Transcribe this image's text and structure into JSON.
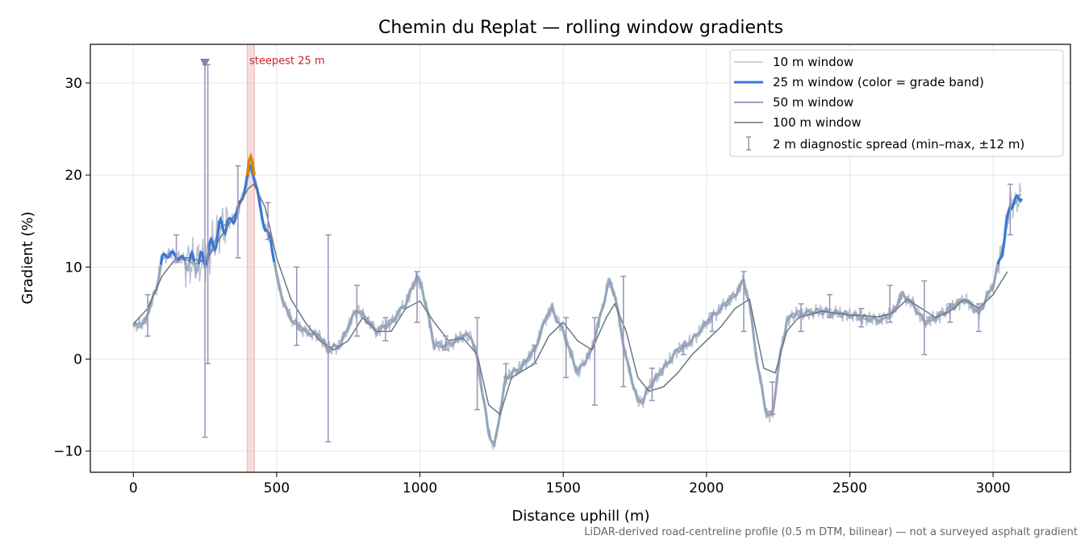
{
  "chart_data": {
    "type": "line",
    "title": "Chemin du Replat — rolling window gradients",
    "xlabel": "Distance uphill (m)",
    "ylabel": "Gradient (%)",
    "xlim": [
      -150,
      3270
    ],
    "ylim": [
      -12.3,
      34.2
    ],
    "xticks": [
      0,
      500,
      1000,
      1500,
      2000,
      2500,
      3000
    ],
    "yticks": [
      -10,
      0,
      10,
      20,
      30
    ],
    "grid": true,
    "legend_position": "top-right",
    "footnote": "LiDAR-derived road-centreline profile (0.5 m DTM, bilinear) — not a surveyed asphalt gradient",
    "annotation": {
      "text": "steepest 25 m",
      "x_range": [
        398,
        422
      ],
      "label_x": 405,
      "label_y": 32.5
    },
    "outlier_marker": {
      "x": 250,
      "y": 32.2
    },
    "colors": {
      "w10": "#b8c2d0",
      "w25": "#3a78d8",
      "w25_steep": "#d9870b",
      "w50": "#94a3b8",
      "w100": "#6b7686",
      "spread": "#9c8fb6",
      "highlight": "#f3c4c4"
    },
    "series": [
      {
        "name": "10 m window"
      },
      {
        "name": "25 m window (color = grade band)"
      },
      {
        "name": "50 m window"
      },
      {
        "name": "100 m window"
      },
      {
        "name": "2 m diagnostic spread (min–max, ±12 m)"
      }
    ],
    "profile": {
      "x": [
        0,
        40,
        60,
        80,
        100,
        130,
        160,
        200,
        230,
        250,
        280,
        300,
        330,
        350,
        380,
        400,
        410,
        420,
        440,
        460,
        480,
        500,
        530,
        560,
        600,
        650,
        680,
        720,
        780,
        850,
        900,
        950,
        990,
        1010,
        1050,
        1100,
        1150,
        1180,
        1200,
        1220,
        1240,
        1260,
        1300,
        1350,
        1400,
        1440,
        1460,
        1500,
        1550,
        1600,
        1640,
        1660,
        1680,
        1720,
        1760,
        1780,
        1800,
        1850,
        1900,
        1950,
        2000,
        2050,
        2100,
        2130,
        2150,
        2180,
        2210,
        2230,
        2260,
        2280,
        2300,
        2350,
        2400,
        2450,
        2500,
        2550,
        2600,
        2650,
        2680,
        2720,
        2760,
        2800,
        2850,
        2900,
        2950,
        3000,
        3020,
        3040,
        3060,
        3080,
        3100
      ],
      "y50": [
        3.5,
        4,
        6,
        7.5,
        11,
        11.5,
        11,
        10.5,
        10.5,
        10.8,
        12.5,
        14,
        15,
        15,
        17.5,
        20,
        21,
        20,
        17,
        14,
        13,
        9,
        5.5,
        4,
        3,
        2.5,
        1,
        1.5,
        5.5,
        3,
        4,
        6,
        9,
        7.5,
        1.5,
        1.5,
        2.5,
        2.5,
        0,
        -4,
        -8,
        -9.5,
        -2,
        -1,
        1,
        4.5,
        5.5,
        3,
        -1.5,
        1,
        6,
        8.5,
        7,
        0,
        -4.5,
        -4.5,
        -3,
        -1,
        1,
        2,
        4,
        5.5,
        7,
        8.5,
        6,
        -1,
        -6,
        -6,
        1,
        4,
        4.8,
        5,
        5.2,
        5,
        4.8,
        4.5,
        4.2,
        5,
        7,
        6,
        4,
        4.5,
        5.5,
        6.5,
        5,
        8,
        10.5,
        13,
        17,
        17,
        18
      ]
    },
    "profile_100": {
      "x": [
        0,
        50,
        100,
        150,
        200,
        250,
        300,
        350,
        400,
        420,
        460,
        500,
        550,
        600,
        650,
        700,
        750,
        800,
        850,
        900,
        950,
        1000,
        1050,
        1100,
        1150,
        1200,
        1240,
        1280,
        1320,
        1400,
        1450,
        1500,
        1550,
        1600,
        1650,
        1680,
        1720,
        1760,
        1800,
        1850,
        1900,
        1950,
        2000,
        2050,
        2100,
        2150,
        2200,
        2240,
        2280,
        2320,
        2400,
        2500,
        2600,
        2650,
        2700,
        2750,
        2800,
        2850,
        2900,
        2950,
        3000,
        3050
      ],
      "y": [
        3.8,
        5.5,
        9,
        11,
        11,
        10.5,
        13,
        15.5,
        18.5,
        19,
        16.5,
        11,
        6.5,
        4,
        2,
        1,
        2,
        4.5,
        3,
        3,
        5.5,
        6.3,
        4,
        2,
        2.3,
        0.5,
        -5,
        -6,
        -2,
        -0.5,
        2.5,
        4,
        2,
        1,
        4.5,
        6,
        3,
        -2,
        -3.5,
        -3,
        -1.5,
        0.5,
        2,
        3.5,
        5.5,
        6.5,
        -1,
        -1.5,
        3,
        4.5,
        5.2,
        4.8,
        4.6,
        5,
        6.5,
        5.5,
        4.5,
        5.2,
        6.5,
        5.5,
        7,
        9.5
      ]
    },
    "steep_segment": {
      "x": [
        398,
        404,
        410,
        416,
        422
      ],
      "y": [
        20,
        21.6,
        22,
        21.3,
        20
      ]
    },
    "spread_bars": [
      {
        "x": 50,
        "min": 2.5,
        "max": 7
      },
      {
        "x": 150,
        "min": 10.5,
        "max": 13.5
      },
      {
        "x": 250,
        "min": -8.5,
        "max": 32
      },
      {
        "x": 260,
        "min": -0.5,
        "max": 32
      },
      {
        "x": 365,
        "min": 11,
        "max": 21
      },
      {
        "x": 470,
        "min": 13,
        "max": 17
      },
      {
        "x": 570,
        "min": 1.5,
        "max": 10
      },
      {
        "x": 680,
        "min": -9,
        "max": 13.5
      },
      {
        "x": 780,
        "min": 2.5,
        "max": 8
      },
      {
        "x": 880,
        "min": 2,
        "max": 4.5
      },
      {
        "x": 990,
        "min": 4,
        "max": 9.5
      },
      {
        "x": 1090,
        "min": 1,
        "max": 2.5
      },
      {
        "x": 1200,
        "min": -5.5,
        "max": 4.5
      },
      {
        "x": 1300,
        "min": -2,
        "max": -0.5
      },
      {
        "x": 1400,
        "min": -0.5,
        "max": 1.5
      },
      {
        "x": 1510,
        "min": -2,
        "max": 4.5
      },
      {
        "x": 1610,
        "min": -5,
        "max": 4.5
      },
      {
        "x": 1710,
        "min": -3,
        "max": 9
      },
      {
        "x": 1810,
        "min": -4.5,
        "max": -1
      },
      {
        "x": 1920,
        "min": 0.5,
        "max": 1.5
      },
      {
        "x": 2020,
        "min": 3,
        "max": 5
      },
      {
        "x": 2130,
        "min": 3,
        "max": 9.5
      },
      {
        "x": 2230,
        "min": -6,
        "max": -2.5
      },
      {
        "x": 2330,
        "min": 3,
        "max": 6
      },
      {
        "x": 2430,
        "min": 4.5,
        "max": 7
      },
      {
        "x": 2540,
        "min": 3.5,
        "max": 5.5
      },
      {
        "x": 2640,
        "min": 4,
        "max": 8
      },
      {
        "x": 2760,
        "min": 0.5,
        "max": 8.5
      },
      {
        "x": 2850,
        "min": 4,
        "max": 6
      },
      {
        "x": 2950,
        "min": 3,
        "max": 6
      },
      {
        "x": 3060,
        "min": 13.5,
        "max": 19
      }
    ]
  }
}
